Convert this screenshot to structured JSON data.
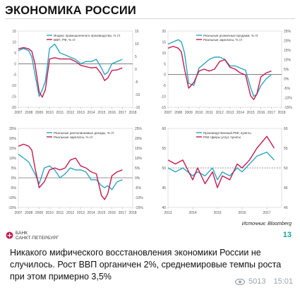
{
  "header": {
    "title": "ЭКОНОМИКА РОССИИ"
  },
  "footer": {
    "source": "Источник: Bloomberg",
    "bank_line1": "БАНК",
    "bank_line2": "САНКТ-ПЕТЕРБУРГ",
    "page_number": "13"
  },
  "post": {
    "caption": "Никакого мифического восстановления экономики России не случилось. Рост ВВП органичен 2%, среднемировые темпы роста при этом примерно 3,5%",
    "views": "5013",
    "time": "15:01"
  },
  "colors": {
    "teal": "#2aa6c4",
    "crimson": "#c8194c",
    "accent": "#1aa39f"
  },
  "chart_data": [
    {
      "type": "line",
      "x": [
        2007,
        2007.5,
        2008,
        2008.3,
        2008.6,
        2009,
        2009.3,
        2009.6,
        2010,
        2010.5,
        2011,
        2011.5,
        2012,
        2012.5,
        2013,
        2013.5,
        2014,
        2014.5,
        2015,
        2015.3,
        2015.6,
        2016,
        2016.5,
        2017
      ],
      "xlim": [
        2007,
        2018
      ],
      "xticks": [
        "2007",
        "2008",
        "2009",
        "2010",
        "2011",
        "2012",
        "2013",
        "2014",
        "2015",
        "2016",
        "2017",
        "2018"
      ],
      "series": [
        {
          "name": "Индекс промышленного производства, % г/г",
          "axis": "left",
          "ylim": [
            -20,
            15
          ],
          "values": [
            6,
            7,
            6,
            3,
            -5,
            -15,
            -12,
            -8,
            7,
            9,
            5,
            4,
            3,
            2,
            0,
            1,
            1,
            2,
            -2,
            -5,
            -4,
            0,
            1,
            2
          ]
        },
        {
          "name": "ВВП, РФ, % г/г",
          "axis": "right",
          "ylim": [
            -15,
            15
          ],
          "values": [
            8,
            8.5,
            8,
            7,
            2,
            -9,
            -11,
            -8,
            4,
            4.5,
            4,
            4,
            4,
            3,
            1.5,
            1,
            0.5,
            0.7,
            -2,
            -4.5,
            -3.5,
            -0.5,
            -0.3,
            0.5
          ]
        }
      ],
      "yticks_left": [
        "-20",
        "-15",
        "-10",
        "-5",
        "0",
        "5",
        "10",
        "15"
      ],
      "yticks_right": [
        "-15",
        "-10",
        "-5",
        "0",
        "5",
        "10",
        "15"
      ],
      "legend": "top"
    },
    {
      "type": "line",
      "x": [
        2007,
        2007.5,
        2008,
        2008.3,
        2008.6,
        2009,
        2009.5,
        2010,
        2010.5,
        2011,
        2011.5,
        2012,
        2012.5,
        2013,
        2013.5,
        2014,
        2014.5,
        2015,
        2015.3,
        2015.6,
        2016,
        2016.5,
        2017
      ],
      "xlim": [
        2007,
        2018
      ],
      "xticks": [
        "2007",
        "2008",
        "2009",
        "2010",
        "2011",
        "2012",
        "2013",
        "2014",
        "2015",
        "2016",
        "2017",
        "2018"
      ],
      "series": [
        {
          "name": "Реальные розничные продажи, % г/г",
          "axis": "left",
          "ylim": [
            -15,
            20
          ],
          "values": [
            14,
            15,
            16,
            15,
            10,
            -4,
            -5,
            3,
            5,
            7,
            8,
            8,
            7,
            4,
            4,
            3,
            2,
            -6,
            -10,
            -9,
            -5,
            -2,
            0
          ]
        },
        {
          "name": "Реальные зарплаты, % г/г",
          "axis": "right",
          "ylim": [
            -15,
            25
          ],
          "values": [
            16,
            17,
            16,
            14,
            5,
            -5,
            -2,
            4,
            5,
            4,
            5,
            9,
            10,
            6,
            5,
            3,
            2,
            -9,
            -11,
            -8,
            1,
            3,
            4
          ]
        }
      ],
      "yticks_left": [
        "-15",
        "-10",
        "-5",
        "0",
        "5",
        "10",
        "15",
        "20"
      ],
      "yticks_right": [
        "-15%",
        "-10%",
        "-5%",
        "0%",
        "5%",
        "10%",
        "15%",
        "20%",
        "25%"
      ],
      "legend": "top"
    },
    {
      "type": "line",
      "x": [
        2007,
        2007.5,
        2008,
        2008.3,
        2008.6,
        2009,
        2009.5,
        2010,
        2010.5,
        2011,
        2011.5,
        2012,
        2012.5,
        2013,
        2013.5,
        2014,
        2014.5,
        2015,
        2015.3,
        2015.6,
        2016,
        2016.5,
        2017
      ],
      "xlim": [
        2007,
        2018
      ],
      "xticks": [
        "2007",
        "2008",
        "2009",
        "2010",
        "2011",
        "2012",
        "2013",
        "2014",
        "2015",
        "2016",
        "2017",
        "2018"
      ],
      "series": [
        {
          "name": "Реальные располагаемые доходы, % г/г",
          "axis": "left",
          "ylim": [
            -15,
            25
          ],
          "values": [
            12,
            10,
            8,
            5,
            2,
            -3,
            5,
            6,
            4,
            0,
            2,
            5,
            4,
            4,
            3,
            -1,
            -1,
            -4,
            -5,
            -4,
            -6,
            -2,
            -1
          ]
        },
        {
          "name": "Реальные зарплаты, % г/г",
          "axis": "right",
          "ylim": [
            -15,
            25
          ],
          "values": [
            16,
            17,
            16,
            14,
            5,
            -5,
            -2,
            4,
            5,
            4,
            5,
            9,
            10,
            6,
            5,
            3,
            2,
            -9,
            -11,
            -8,
            1,
            3,
            4
          ]
        }
      ],
      "yticks_left": [
        "-15%",
        "-10%",
        "-5%",
        "0%",
        "5%",
        "10%",
        "15%",
        "20%",
        "25%"
      ],
      "yticks_right": [
        "-15%",
        "-10%",
        "-5%",
        "0%",
        "5%",
        "10%",
        "15%",
        "20%",
        "25%"
      ],
      "legend": "top"
    },
    {
      "type": "line",
      "x": [
        2013,
        2013.3,
        2013.6,
        2014,
        2014.2,
        2014.5,
        2014.8,
        2015,
        2015.2,
        2015.5,
        2015.8,
        2016,
        2016.3,
        2016.6,
        2017,
        2017.3
      ],
      "xlim": [
        2013,
        2017.6
      ],
      "xticks": [
        "2013",
        "2014",
        "2015",
        "2016",
        "2017"
      ],
      "series": [
        {
          "name": "Производственный PMI, пункты",
          "axis": "left",
          "ylim": [
            40,
            60
          ],
          "values": [
            50,
            49,
            50,
            48,
            49,
            48,
            50,
            47,
            49,
            48,
            50,
            49,
            51,
            53,
            54,
            52
          ]
        },
        {
          "name": "PMI сферы услуг, пункты",
          "axis": "left",
          "ylim": [
            40,
            60
          ],
          "values": [
            52,
            51,
            52,
            47,
            50,
            46,
            49,
            45,
            48,
            47,
            51,
            50,
            52,
            55,
            58,
            55
          ]
        }
      ],
      "yticks_left": [
        "40",
        "45",
        "50",
        "55",
        "60"
      ],
      "yticks_right": [
        "40",
        "45",
        "50",
        "55",
        "60"
      ],
      "reference_line": 50,
      "legend": "top"
    }
  ]
}
